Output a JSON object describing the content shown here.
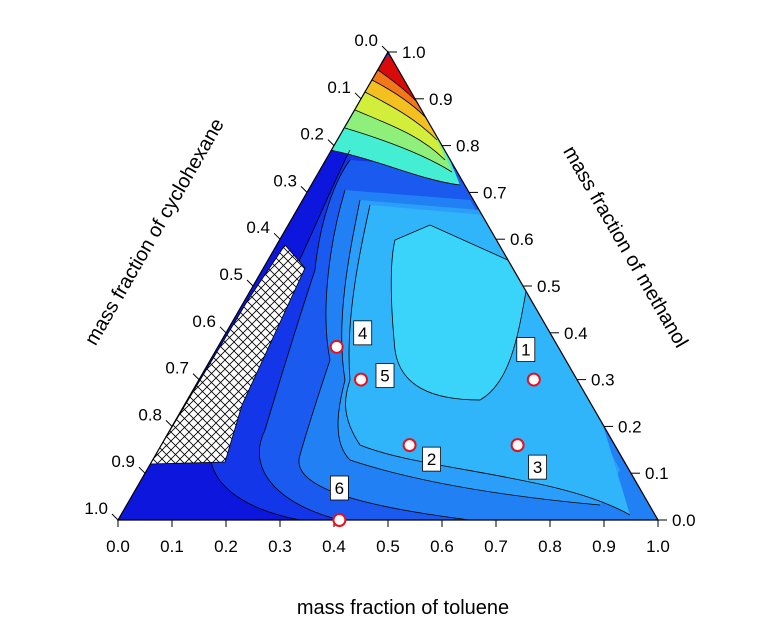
{
  "chart_data": {
    "type": "ternary-contour",
    "axes": {
      "bottom": {
        "label": "mass fraction of toluene",
        "ticks": [
          "0.0",
          "0.1",
          "0.2",
          "0.3",
          "0.4",
          "0.5",
          "0.6",
          "0.7",
          "0.8",
          "0.9",
          "1.0"
        ],
        "range": [
          0,
          1
        ]
      },
      "right": {
        "label": "mass fraction of methanol",
        "ticks": [
          "0.0",
          "0.1",
          "0.2",
          "0.3",
          "0.4",
          "0.5",
          "0.6",
          "0.7",
          "0.8",
          "0.9",
          "1.0"
        ],
        "range": [
          0,
          1
        ]
      },
      "left": {
        "label": "mass fraction of cyclohexane",
        "ticks": [
          "0.0",
          "0.1",
          "0.2",
          "0.3",
          "0.4",
          "0.5",
          "0.6",
          "0.7",
          "0.8",
          "0.9",
          "1.0"
        ],
        "range": [
          0,
          1
        ]
      }
    },
    "colormap": [
      "#0a12d8",
      "#0c2ae6",
      "#1552ee",
      "#1f7cf4",
      "#2aa4f8",
      "#30c4fb",
      "#3ae0fb",
      "#44eed2",
      "#8ef07a",
      "#d2ee3a",
      "#f4c020",
      "#f07818",
      "#e03010",
      "#d00808"
    ],
    "points": [
      {
        "label": "1",
        "toluene": 0.62,
        "methanol": 0.3
      },
      {
        "label": "2",
        "toluene": 0.46,
        "methanol": 0.16
      },
      {
        "label": "3",
        "toluene": 0.66,
        "methanol": 0.16
      },
      {
        "label": "4",
        "toluene": 0.22,
        "methanol": 0.37
      },
      {
        "label": "5",
        "toluene": 0.3,
        "methanol": 0.3
      },
      {
        "label": "6",
        "toluene": 0.41,
        "methanol": 0.0
      }
    ],
    "hatched_region": "two-phase region (left edge, cyclohexane-rich side)",
    "grid": false
  }
}
